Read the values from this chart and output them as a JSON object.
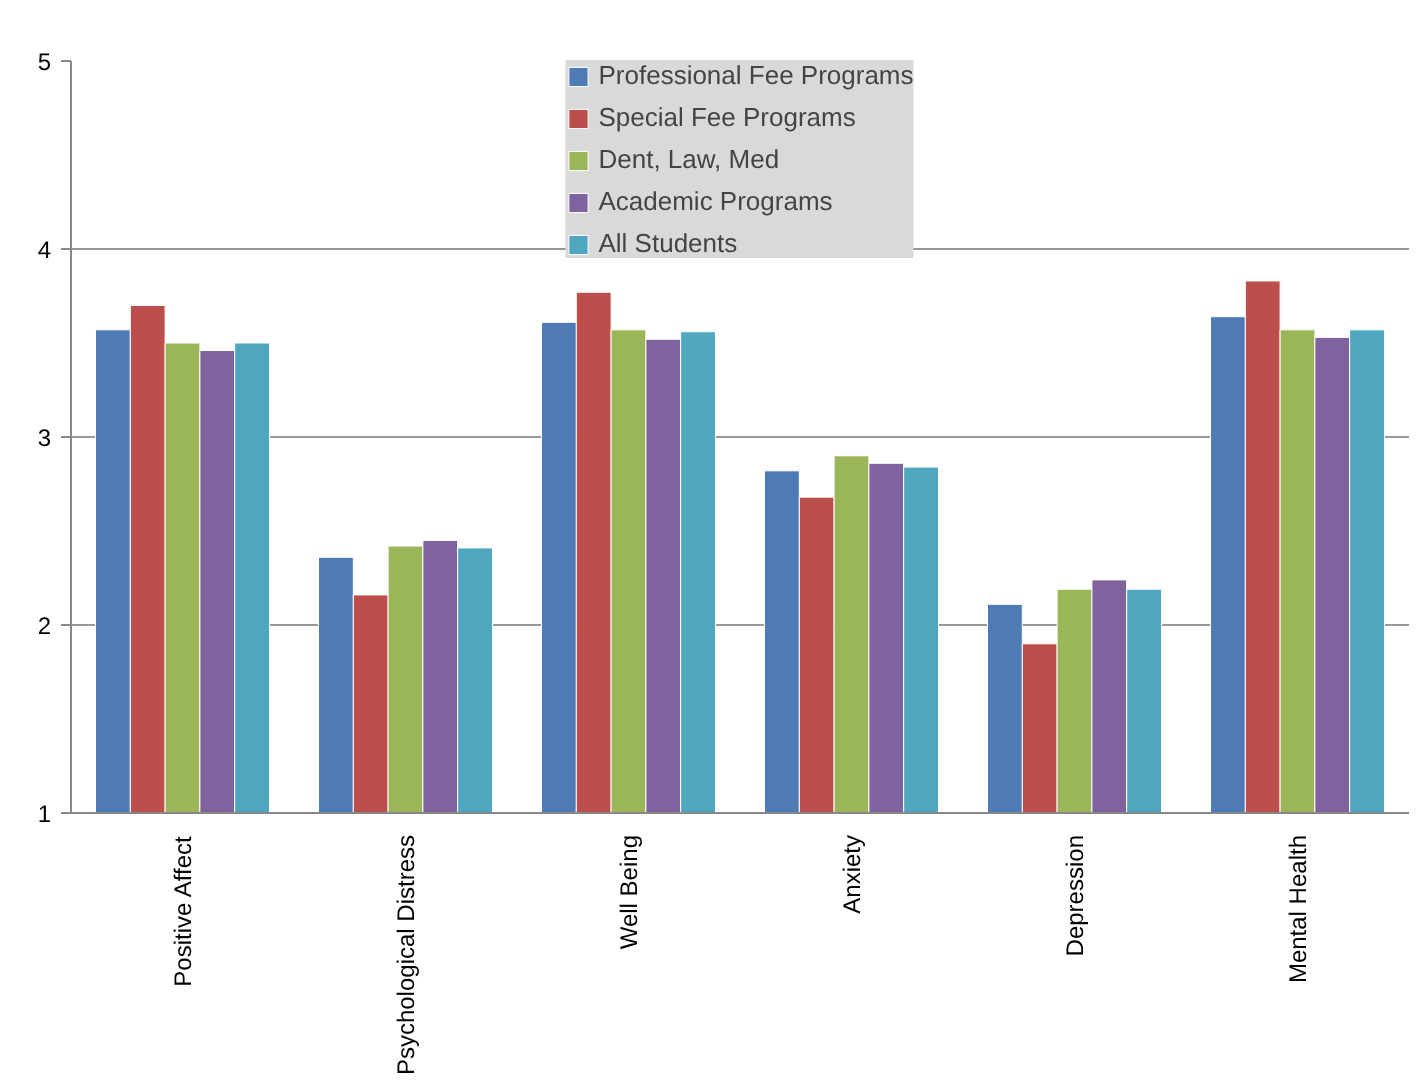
{
  "chart_data": {
    "type": "bar",
    "categories": [
      "Positive Affect",
      "Psychological Distress",
      "Well Being",
      "Anxiety",
      "Depression",
      "Mental Health"
    ],
    "series": [
      {
        "name": "Professional Fee Programs",
        "color": "#4f7bb5",
        "values": [
          3.57,
          2.36,
          3.61,
          2.82,
          2.11,
          3.64
        ]
      },
      {
        "name": "Special Fee Programs",
        "color": "#bc4f4c",
        "values": [
          3.7,
          2.16,
          3.77,
          2.68,
          1.9,
          3.83
        ]
      },
      {
        "name": "Dent, Law, Med",
        "color": "#9ab659",
        "values": [
          3.5,
          2.42,
          3.57,
          2.9,
          2.19,
          3.57
        ]
      },
      {
        "name": "Academic Programs",
        "color": "#7e639e",
        "values": [
          3.46,
          2.45,
          3.52,
          2.86,
          2.24,
          3.53
        ]
      },
      {
        "name": "All Students",
        "color": "#4ea7bf",
        "values": [
          3.5,
          2.41,
          3.56,
          2.84,
          2.19,
          3.57
        ]
      }
    ],
    "ylim": [
      1,
      5
    ],
    "yticks": [
      1,
      2,
      3,
      4,
      5
    ],
    "grid": "y",
    "legend": "top"
  }
}
